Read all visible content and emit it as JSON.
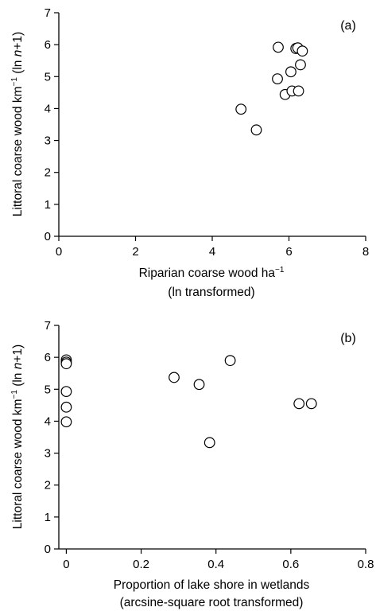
{
  "chart_data": [
    {
      "type": "scatter",
      "panel_label": "(a)",
      "ylabel_pre": "Littoral coarse wood km",
      "ylabel_sup": "−1",
      "ylabel_paren_open": " (ln ",
      "ylabel_italic": "n",
      "ylabel_post": "+1)",
      "xlabel_line1_pre": "Riparian coarse wood ha",
      "xlabel_line1_sup": "−1",
      "xlabel_line2": "(ln transformed)",
      "xlim": [
        0,
        8
      ],
      "ylim": [
        0,
        7
      ],
      "xticks": [
        "0",
        "2",
        "4",
        "6",
        "8"
      ],
      "yticks": [
        "0",
        "1",
        "2",
        "3",
        "4",
        "5",
        "6",
        "7"
      ],
      "grid": false,
      "series": [
        {
          "points": [
            {
              "x": 4.75,
              "y": 3.98
            },
            {
              "x": 5.15,
              "y": 3.33
            },
            {
              "x": 5.72,
              "y": 5.92
            },
            {
              "x": 5.7,
              "y": 4.93
            },
            {
              "x": 5.9,
              "y": 4.44
            },
            {
              "x": 6.05,
              "y": 5.15
            },
            {
              "x": 6.08,
              "y": 4.55
            },
            {
              "x": 6.18,
              "y": 5.88
            },
            {
              "x": 6.23,
              "y": 5.9
            },
            {
              "x": 6.25,
              "y": 4.55
            },
            {
              "x": 6.3,
              "y": 5.37
            },
            {
              "x": 6.35,
              "y": 5.8
            }
          ]
        }
      ]
    },
    {
      "type": "scatter",
      "panel_label": "(b)",
      "ylabel_pre": "Littoral coarse wood km",
      "ylabel_sup": "−1",
      "ylabel_paren_open": " (ln ",
      "ylabel_italic": "n",
      "ylabel_post": "+1)",
      "xlabel_line1": "Proportion of lake shore in wetlands",
      "xlabel_line2": "(arcsine-square root transformed)",
      "xlim": [
        -0.02,
        0.8
      ],
      "ylim": [
        0,
        7
      ],
      "xticks": [
        "0",
        "0.2",
        "0.4",
        "0.6",
        "0.8"
      ],
      "yticks": [
        "0",
        "1",
        "2",
        "3",
        "4",
        "5",
        "6",
        "7"
      ],
      "grid": false,
      "series": [
        {
          "points": [
            {
              "x": 0.0,
              "y": 5.92
            },
            {
              "x": 0.0,
              "y": 5.85
            },
            {
              "x": 0.0,
              "y": 5.8
            },
            {
              "x": 0.0,
              "y": 4.93
            },
            {
              "x": 0.0,
              "y": 4.44
            },
            {
              "x": 0.0,
              "y": 3.98
            },
            {
              "x": 0.288,
              "y": 5.37
            },
            {
              "x": 0.355,
              "y": 5.15
            },
            {
              "x": 0.383,
              "y": 3.33
            },
            {
              "x": 0.438,
              "y": 5.9
            },
            {
              "x": 0.622,
              "y": 4.55
            },
            {
              "x": 0.655,
              "y": 4.55
            }
          ]
        }
      ]
    }
  ]
}
